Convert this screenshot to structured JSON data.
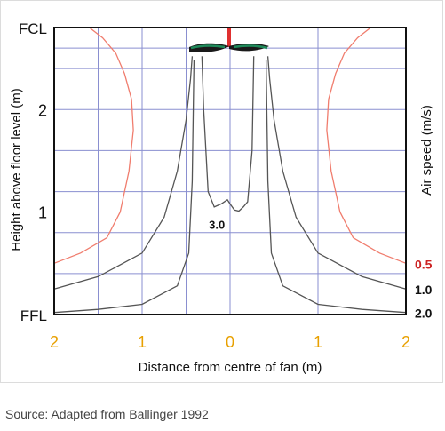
{
  "chart_data": {
    "type": "line",
    "title": "",
    "xlabel": "Distance from centre of fan (m)",
    "ylabel": "Height above floor level (m)",
    "y2label": "Air speed (m/s)",
    "xlim": [
      -2,
      2
    ],
    "ylim": [
      0,
      2.8
    ],
    "x_ticks": [
      {
        "value": -2,
        "label": "2"
      },
      {
        "value": -1,
        "label": "1"
      },
      {
        "value": 0,
        "label": "0"
      },
      {
        "value": 1,
        "label": "1"
      },
      {
        "value": 2,
        "label": "2"
      }
    ],
    "y_ticks": [
      {
        "value": 0,
        "label": "FFL"
      },
      {
        "value": 1,
        "label": "1"
      },
      {
        "value": 2,
        "label": "2"
      },
      {
        "value": 2.8,
        "label": "FCL"
      }
    ],
    "grid": true,
    "series": [
      {
        "name": "0.5",
        "color": "#f07d6e",
        "label_color": "#cc2222",
        "x": [
          -2.0,
          -1.7,
          -1.4,
          -1.25,
          -1.15,
          -1.1,
          -1.12,
          -1.2,
          -1.3,
          -1.45,
          -1.6
        ],
        "y": [
          0.5,
          0.6,
          0.75,
          1.0,
          1.4,
          1.8,
          2.1,
          2.35,
          2.55,
          2.7,
          2.8
        ]
      },
      {
        "name": "1.0",
        "color": "#555555",
        "label_color": "#111111",
        "x": [
          -2.0,
          -1.5,
          -1.0,
          -0.75,
          -0.6,
          -0.5,
          -0.45,
          -0.43
        ],
        "y": [
          0.25,
          0.37,
          0.6,
          0.95,
          1.4,
          1.9,
          2.3,
          2.52
        ]
      },
      {
        "name": "2.0",
        "color": "#555555",
        "label_color": "#111111",
        "x": [
          -2.0,
          -1.5,
          -1.0,
          -0.6,
          -0.47,
          -0.43,
          -0.41
        ],
        "y": [
          0.02,
          0.05,
          0.1,
          0.28,
          0.6,
          1.3,
          2.48
        ]
      },
      {
        "name": "3.0",
        "color": "#555555",
        "label_color": "#111111",
        "x": [
          -0.32,
          -0.3,
          -0.25,
          -0.18,
          -0.1,
          -0.03,
          0.0,
          0.05,
          0.1,
          0.15,
          0.2,
          0.25,
          0.27
        ],
        "y": [
          2.52,
          2.0,
          1.2,
          1.05,
          1.08,
          1.12,
          1.08,
          1.02,
          1.01,
          1.05,
          1.1,
          1.6,
          2.52
        ]
      }
    ],
    "annotations": [
      {
        "text": "3.0",
        "x": -0.15,
        "y": 0.88
      }
    ]
  }
}
